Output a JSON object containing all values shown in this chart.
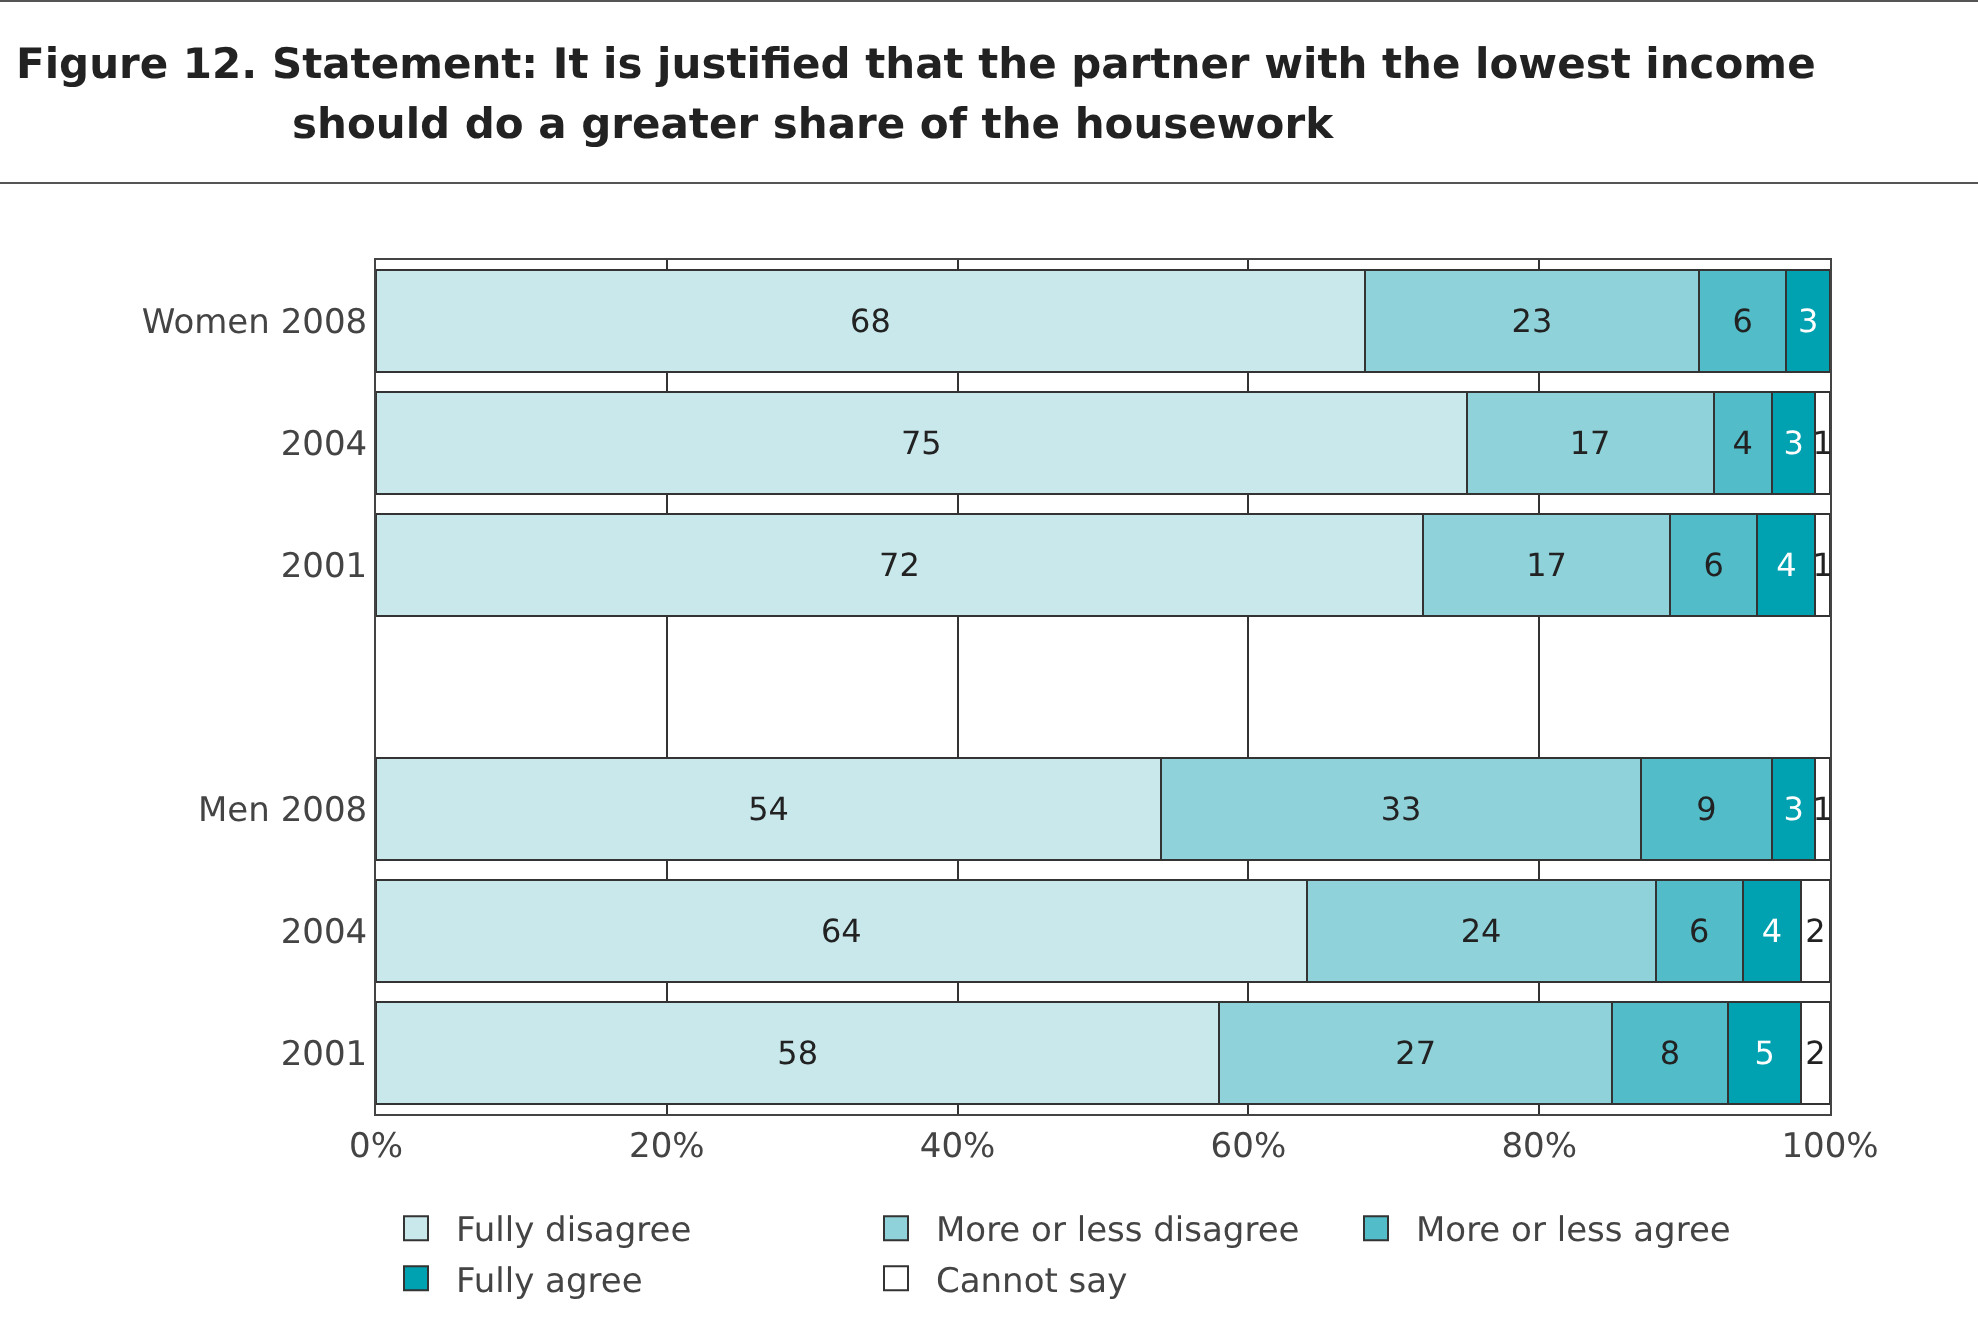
{
  "chart_data": {
    "type": "bar",
    "orientation": "horizontal",
    "stacked": true,
    "title": "Figure 12. Statement: It is justified that the partner with the lowest income should do a greater share of the housework",
    "categories": [
      "Women 2008",
      "2004",
      "2001",
      null,
      "Men 2008",
      "2004",
      "2001"
    ],
    "series": [
      {
        "name": "Fully disagree",
        "color": "#c8e8ec",
        "values": [
          68,
          75,
          72,
          null,
          54,
          64,
          58
        ]
      },
      {
        "name": "More or less disagree",
        "color": "#8fd2da",
        "values": [
          23,
          17,
          17,
          null,
          33,
          24,
          27
        ]
      },
      {
        "name": "More or less agree",
        "color": "#52bdc9",
        "values": [
          6,
          4,
          6,
          null,
          9,
          6,
          8
        ]
      },
      {
        "name": "Fully agree",
        "color": "#00a2b1",
        "values": [
          3,
          3,
          4,
          null,
          3,
          4,
          5
        ]
      },
      {
        "name": "Cannot say",
        "color": "#ffffff",
        "values": [
          0,
          1,
          1,
          null,
          1,
          2,
          2
        ],
        "value_labels": [
          null,
          "1",
          "1",
          null,
          "1",
          "2",
          "2"
        ]
      }
    ],
    "xlim": [
      0,
      100
    ],
    "xticks": [
      {
        "value": 0,
        "label": "0%"
      },
      {
        "value": 20,
        "label": "20%"
      },
      {
        "value": 40,
        "label": "40%"
      },
      {
        "value": 60,
        "label": "60%"
      },
      {
        "value": 80,
        "label": "80%"
      },
      {
        "value": 100,
        "label": "100%"
      }
    ],
    "grid": "x",
    "legend": "bottom",
    "data_labels": true
  }
}
